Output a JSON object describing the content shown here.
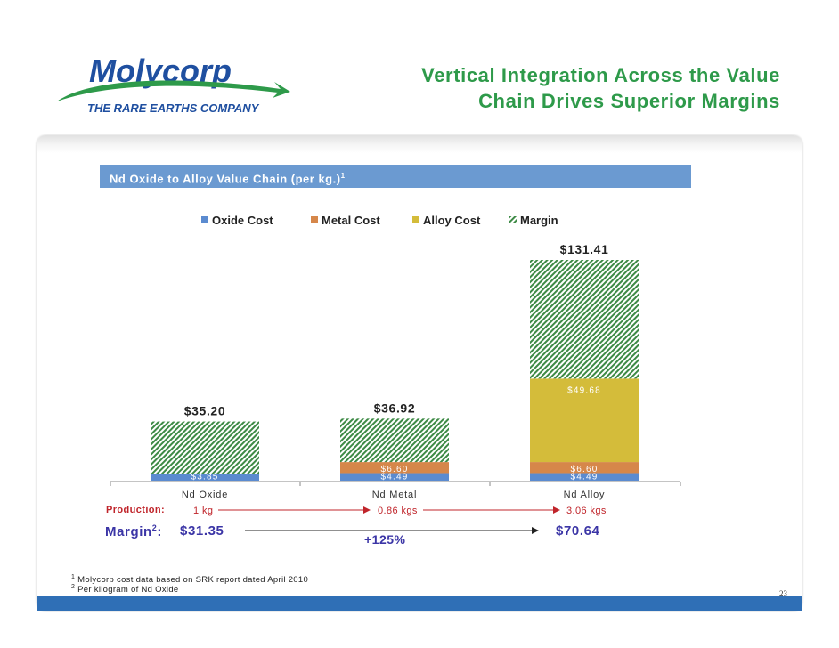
{
  "logo": {
    "name": "Molycorp",
    "tagline": "THE RARE EARTHS COMPANY",
    "colors": {
      "wordmark": "#1f4fa0",
      "swoosh": "#2e9a4a"
    }
  },
  "title": {
    "line1": "Vertical Integration Across the Value",
    "line2": "Chain Drives Superior Margins",
    "color": "#2e9a4a"
  },
  "section_header": {
    "text": "Nd Oxide to Alloy Value Chain (per kg.)",
    "superscript": "1"
  },
  "chart_data": {
    "type": "bar",
    "stacked": true,
    "categories": [
      "Nd Oxide",
      "Nd Metal",
      "Nd Alloy"
    ],
    "series": [
      {
        "name": "Oxide Cost",
        "color": "#5b8bd0",
        "values": [
          3.85,
          4.49,
          4.49
        ],
        "labels": [
          "$3.85",
          "$4.49",
          "$4.49"
        ]
      },
      {
        "name": "Metal Cost",
        "color": "#d6874a",
        "values": [
          0,
          6.6,
          6.6
        ],
        "labels": [
          "",
          "$6.60",
          "$6.60"
        ]
      },
      {
        "name": "Alloy Cost",
        "color": "#d4bc3a",
        "values": [
          0,
          0,
          49.68
        ],
        "labels": [
          "",
          "",
          "$49.68"
        ]
      },
      {
        "name": "Margin",
        "color": "#3d8a45",
        "pattern": "diagonal-hatch",
        "values": [
          31.35,
          25.83,
          70.64
        ]
      }
    ],
    "totals": [
      35.2,
      36.92,
      131.41
    ],
    "total_labels": [
      "$35.20",
      "$36.92",
      "$131.41"
    ],
    "ylim": [
      0,
      131.41
    ],
    "legend_position": "top",
    "grid": false
  },
  "production": {
    "label": "Production:",
    "values": [
      "1 kg",
      "0.86 kgs",
      "3.06 kgs"
    ]
  },
  "margin_row": {
    "label": "Margin",
    "superscript": "2",
    "start": "$31.35",
    "end": "$70.64",
    "growth": "+125%"
  },
  "footnotes": [
    {
      "num": "1",
      "text": "Molycorp cost data based on SRK report dated April 2010"
    },
    {
      "num": "2",
      "text": "Per kilogram of Nd Oxide"
    }
  ],
  "page_number": "23"
}
